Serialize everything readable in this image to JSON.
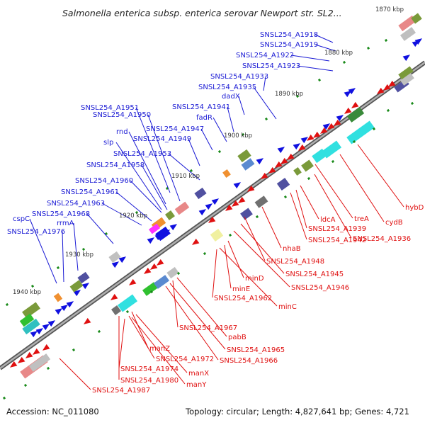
{
  "title": "Salmonella enterica subsp. enterica serovar Newport str. SL2...",
  "footer": {
    "accession": "Accession: NC_011080",
    "summary": "Topology: circular; Length: 4,827,641 bp; Genes: 4,721"
  },
  "colors": {
    "backbone": "#8a8a8a",
    "upper_strand_label": "#1a1ad4",
    "lower_strand_label": "#e01010",
    "forward_gene": "#1010e0",
    "reverse_gene": "#e01010",
    "tick": "#1a8a1a"
  },
  "kbp_ticks": [
    {
      "label": "1870 kbp"
    },
    {
      "label": "1880 kbp"
    },
    {
      "label": "1890 kbp"
    },
    {
      "label": "1900 kbp"
    },
    {
      "label": "1910 kbp"
    },
    {
      "label": "1920 kbp"
    },
    {
      "label": "1930 kbp"
    },
    {
      "label": "1940 kbp"
    }
  ],
  "upper_labels": [
    {
      "text": "SNSL254_A1918"
    },
    {
      "text": "SNSL254_A1919"
    },
    {
      "text": "SNSL254_A1922"
    },
    {
      "text": "SNSL254_A1923"
    },
    {
      "text": "SNSL254_A1933"
    },
    {
      "text": "SNSL254_A1935"
    },
    {
      "text": "dadX"
    },
    {
      "text": "SNSL254_A1941"
    },
    {
      "text": "fadR"
    },
    {
      "text": "SNSL254_A1951"
    },
    {
      "text": "SNSL254_A1950"
    },
    {
      "text": "SNSL254_A1947"
    },
    {
      "text": "rnd"
    },
    {
      "text": "SNSL254_A1949"
    },
    {
      "text": "slp"
    },
    {
      "text": "SNSL254_A1953"
    },
    {
      "text": "SNSL254_A1958"
    },
    {
      "text": "SNSL254_A1960"
    },
    {
      "text": "SNSL254_A1961"
    },
    {
      "text": "SNSL254_A1963"
    },
    {
      "text": "SNSL254_A1968"
    },
    {
      "text": "rrmA"
    },
    {
      "text": "cspC"
    },
    {
      "text": "SNSL254_A1976"
    }
  ],
  "lower_labels": [
    {
      "text": "hybD"
    },
    {
      "text": "cydB"
    },
    {
      "text": "treA"
    },
    {
      "text": "SNSL254_A1936"
    },
    {
      "text": "ldcA"
    },
    {
      "text": "SNSL254_A1939"
    },
    {
      "text": "SNSL254_A1942"
    },
    {
      "text": "nhaB"
    },
    {
      "text": "SNSL254_A1948"
    },
    {
      "text": "SNSL254_A1945"
    },
    {
      "text": "SNSL254_A1946"
    },
    {
      "text": "minD"
    },
    {
      "text": "minE"
    },
    {
      "text": "SNSL254_A1962"
    },
    {
      "text": "minC"
    },
    {
      "text": "SNSL254_A1967"
    },
    {
      "text": "pabB"
    },
    {
      "text": "SNSL254_A1965"
    },
    {
      "text": "SNSL254_A1966"
    },
    {
      "text": "manZ"
    },
    {
      "text": "SNSL254_A1972"
    },
    {
      "text": "SNSL254_A1974"
    },
    {
      "text": "manX"
    },
    {
      "text": "SNSL254_A1980"
    },
    {
      "text": "manY"
    },
    {
      "text": "SNSL254_A1987"
    }
  ]
}
